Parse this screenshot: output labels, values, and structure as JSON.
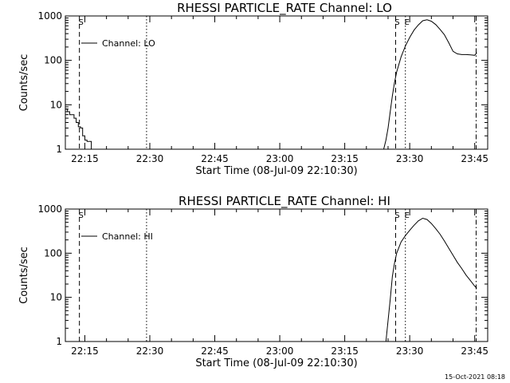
{
  "footer_stamp": "15-Oct-2021 08:18",
  "chart_data": [
    {
      "type": "line",
      "title": "RHESSI PARTICLE_RATE Channel: LO",
      "xlabel": "Start Time (08-Jul-09 22:10:30)",
      "ylabel": "Counts/sec",
      "yscale": "log",
      "xlim": [
        "22:10:30",
        "23:48:00"
      ],
      "ylim": [
        1,
        1000
      ],
      "xticks": [
        "22:15",
        "22:30",
        "22:45",
        "23:00",
        "23:15",
        "23:30",
        "23:45"
      ],
      "yticks": [
        "1",
        "10",
        "100",
        "1000"
      ],
      "grid": false,
      "legend": {
        "position": "top-left",
        "entries": [
          "Channel: LO"
        ]
      },
      "series": [
        {
          "name": "Channel: LO",
          "x": [
            "22:10:30",
            "22:11:00",
            "22:11:30",
            "22:12:00",
            "22:12:30",
            "22:13:00",
            "22:13:30",
            "22:14:00",
            "22:14:30",
            "22:15:00",
            "22:15:30",
            "22:16:00",
            "22:16:30",
            "22:16:40"
          ],
          "y": [
            8,
            7,
            6,
            6,
            5,
            4,
            3.2,
            3,
            2,
            1.6,
            1.5,
            1.5,
            1.0,
            1.0
          ],
          "step": true
        },
        {
          "name": "",
          "x": [
            "23:24:00",
            "23:24:30",
            "23:25:00",
            "23:25:30",
            "23:26:00",
            "23:26:30",
            "23:27:00",
            "23:28:00",
            "23:29:00",
            "23:30:00",
            "23:31:00",
            "23:32:00",
            "23:33:00",
            "23:34:00",
            "23:35:00",
            "23:36:00",
            "23:37:00",
            "23:38:00",
            "23:39:00",
            "23:40:00",
            "23:41:00",
            "23:42:00",
            "23:43:00",
            "23:44:00",
            "23:45:00",
            "23:45:30"
          ],
          "y": [
            1,
            1.6,
            3,
            7,
            16,
            32,
            55,
            120,
            210,
            330,
            480,
            630,
            780,
            820,
            760,
            640,
            500,
            380,
            250,
            160,
            140,
            135,
            135,
            133,
            130,
            150
          ]
        }
      ],
      "markers": [
        {
          "type": "dashed",
          "x": "22:13:45",
          "label": "S"
        },
        {
          "type": "dotted",
          "x": "22:29:15",
          "label": ""
        },
        {
          "type": "dashed",
          "x": "23:26:45",
          "label": "S"
        },
        {
          "type": "dotted",
          "x": "23:29:00",
          "label": "E"
        },
        {
          "type": "dashdot",
          "x": "23:45:20",
          "label": ""
        }
      ]
    },
    {
      "type": "line",
      "title": "RHESSI PARTICLE_RATE Channel: HI",
      "xlabel": "Start Time (08-Jul-09 22:10:30)",
      "ylabel": "Counts/sec",
      "yscale": "log",
      "xlim": [
        "22:10:30",
        "23:48:00"
      ],
      "ylim": [
        1,
        1000
      ],
      "xticks": [
        "22:15",
        "22:30",
        "22:45",
        "23:00",
        "23:15",
        "23:30",
        "23:45"
      ],
      "yticks": [
        "1",
        "10",
        "100",
        "1000"
      ],
      "grid": false,
      "legend": {
        "position": "top-left",
        "entries": [
          "Channel: HI"
        ]
      },
      "series": [
        {
          "name": "Channel: HI",
          "x": [
            "23:24:30",
            "23:25:00",
            "23:25:30",
            "23:26:00",
            "23:26:30",
            "23:27:00",
            "23:28:00",
            "23:29:00",
            "23:30:00",
            "23:31:00",
            "23:32:00",
            "23:33:00",
            "23:34:00",
            "23:35:00",
            "23:36:00",
            "23:37:00",
            "23:38:00",
            "23:39:00",
            "23:40:00",
            "23:41:00",
            "23:42:00",
            "23:43:00",
            "23:44:00",
            "23:45:00",
            "23:45:30"
          ],
          "y": [
            1,
            3,
            9,
            30,
            60,
            100,
            180,
            250,
            330,
            430,
            540,
            620,
            580,
            470,
            360,
            270,
            190,
            130,
            90,
            62,
            45,
            32,
            24,
            18,
            16
          ]
        }
      ],
      "markers": [
        {
          "type": "dashed",
          "x": "22:13:45",
          "label": "S"
        },
        {
          "type": "dotted",
          "x": "22:29:15",
          "label": ""
        },
        {
          "type": "dashed",
          "x": "23:26:45",
          "label": "S"
        },
        {
          "type": "dotted",
          "x": "23:29:00",
          "label": "E"
        },
        {
          "type": "dashdot",
          "x": "23:45:20",
          "label": ""
        }
      ]
    }
  ]
}
